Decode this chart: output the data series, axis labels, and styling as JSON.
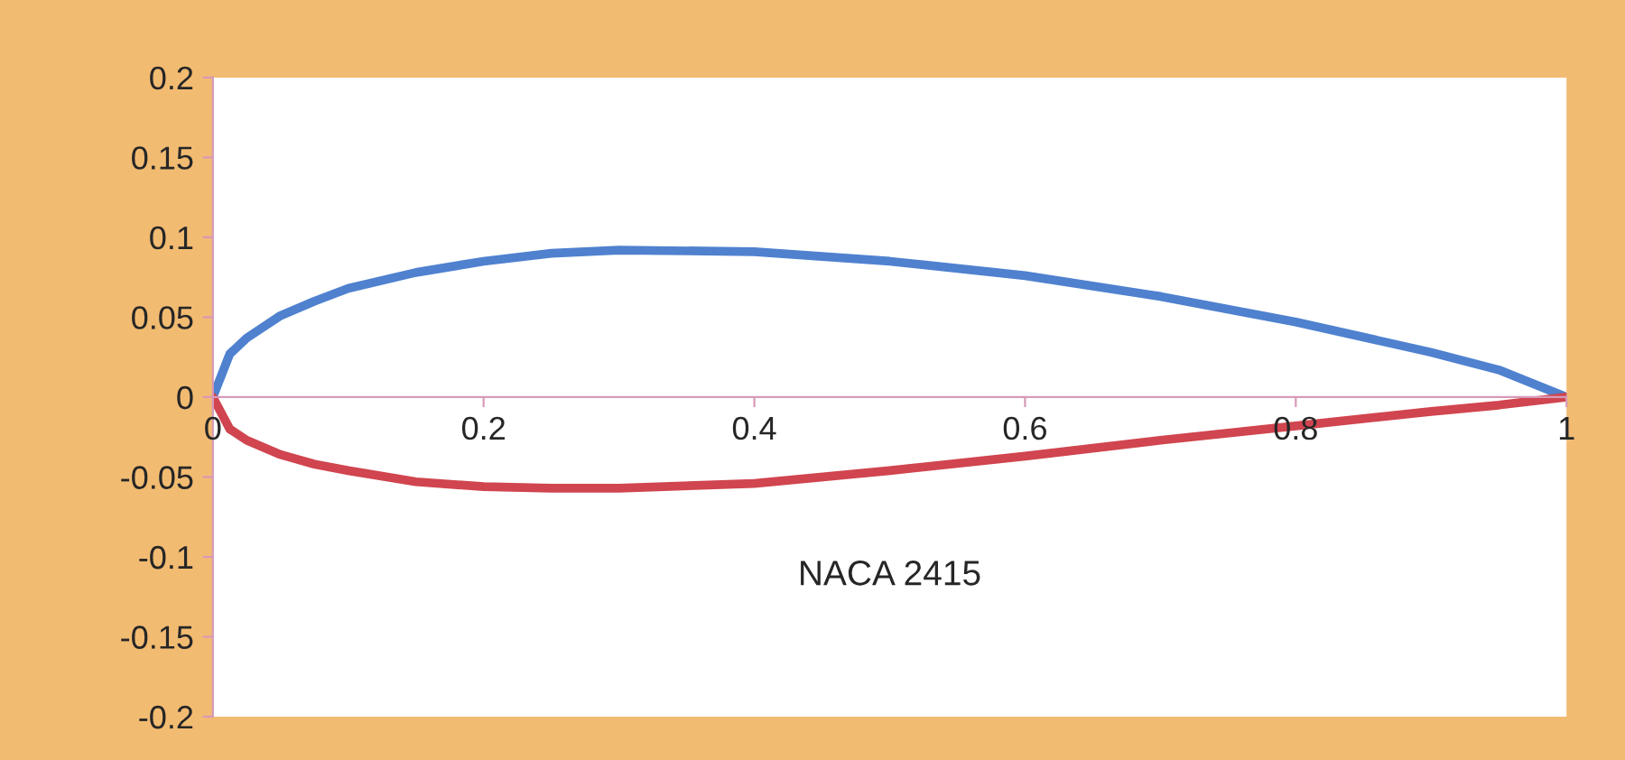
{
  "chart_data": {
    "type": "line",
    "series": [
      {
        "color": "#4f81cf",
        "x": [
          0,
          0.0125,
          0.025,
          0.05,
          0.075,
          0.1,
          0.15,
          0.2,
          0.25,
          0.3,
          0.4,
          0.5,
          0.6,
          0.7,
          0.8,
          0.9,
          0.95,
          1.0
        ],
        "values": [
          0,
          0.027,
          0.037,
          0.051,
          0.06,
          0.068,
          0.078,
          0.085,
          0.09,
          0.092,
          0.091,
          0.085,
          0.076,
          0.063,
          0.047,
          0.028,
          0.017,
          0
        ]
      },
      {
        "color": "#d0454f",
        "x": [
          0,
          0.0125,
          0.025,
          0.05,
          0.075,
          0.1,
          0.15,
          0.2,
          0.25,
          0.3,
          0.4,
          0.5,
          0.6,
          0.7,
          0.8,
          0.9,
          0.95,
          1.0
        ],
        "values": [
          0,
          -0.02,
          -0.027,
          -0.036,
          -0.042,
          -0.046,
          -0.053,
          -0.056,
          -0.057,
          -0.057,
          -0.054,
          -0.046,
          -0.037,
          -0.027,
          -0.018,
          -0.009,
          -0.005,
          0
        ]
      }
    ],
    "xlim": [
      0,
      1
    ],
    "ylim": [
      -0.2,
      0.2
    ],
    "xticks": [
      0,
      0.2,
      0.4,
      0.6,
      0.8,
      1
    ],
    "yticks": [
      -0.2,
      -0.15,
      -0.1,
      -0.05,
      0,
      0.05,
      0.1,
      0.15,
      0.2
    ],
    "annotations": [
      "NACA 2415"
    ],
    "grid": false,
    "legend": false,
    "marker": "none",
    "line_style": "solid"
  }
}
